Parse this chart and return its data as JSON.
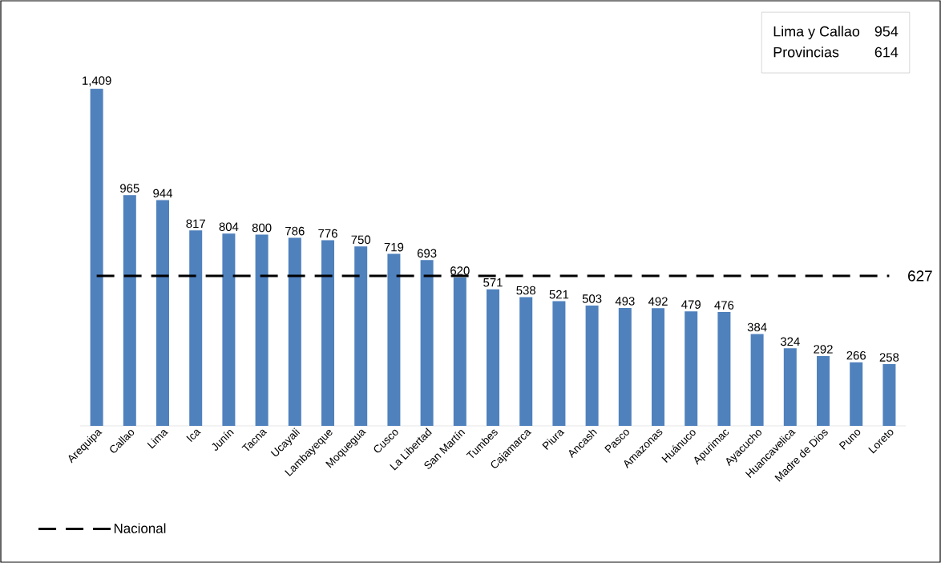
{
  "chart_data": {
    "type": "bar",
    "categories": [
      "Arequipa",
      "Callao",
      "Lima",
      "Ica",
      "Junín",
      "Tacna",
      "Ucayali",
      "Lambayeque",
      "Moquegua",
      "Cusco",
      "La Libertad",
      "San Martín",
      "Tumbes",
      "Cajamarca",
      "Piura",
      "Ancash",
      "Pasco",
      "Amazonas",
      "Huánuco",
      "Apurimac",
      "Ayacucho",
      "Huancavelica",
      "Madre de Dios",
      "Puno",
      "Loreto"
    ],
    "series": [
      {
        "color": "#4f81bd",
        "values": [
          1409,
          965,
          944,
          817,
          804,
          800,
          786,
          776,
          750,
          719,
          693,
          620,
          571,
          538,
          521,
          503,
          493,
          492,
          479,
          476,
          384,
          324,
          292,
          266,
          258
        ],
        "value_labels": [
          "1,409",
          "965",
          "944",
          "817",
          "804",
          "800",
          "786",
          "776",
          "750",
          "719",
          "693",
          "620",
          "571",
          "538",
          "521",
          "503",
          "493",
          "492",
          "479",
          "476",
          "384",
          "324",
          "292",
          "266",
          "258"
        ]
      },
      {
        "type": "line",
        "name": "Nacional",
        "color": "#000000",
        "line_style": "dashed",
        "marker": "none",
        "values": [
          627,
          627,
          627,
          627,
          627,
          627,
          627,
          627,
          627,
          627,
          627,
          627,
          627,
          627,
          627,
          627,
          627,
          627,
          627,
          627,
          627,
          627,
          627,
          627,
          627
        ]
      }
    ],
    "legend": "bottom left",
    "annotations": [
      {
        "text": "627",
        "x": "Loreto",
        "y": 627
      },
      "Lima y Callao",
      "954",
      "Provincias",
      "614"
    ]
  }
}
